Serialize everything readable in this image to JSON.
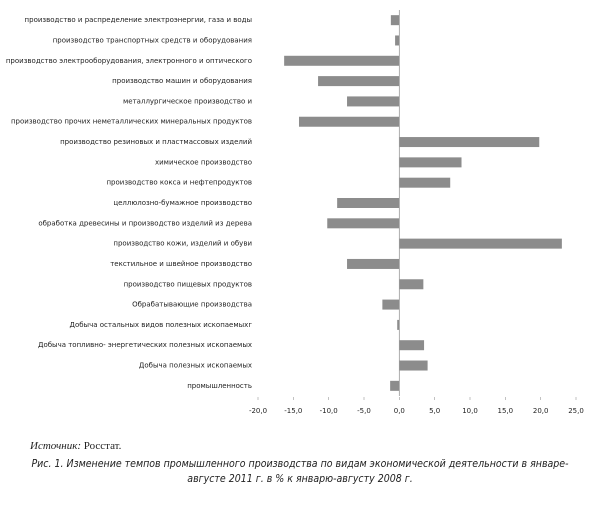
{
  "chart_data": {
    "type": "hbar",
    "categories": [
      "производство и распределение электроэнергии, газа и воды",
      "производство транспортных средств и оборудования",
      "производство электрооборудования, электронного и оптического",
      "производство машин и оборудования",
      "металлургическое производство и",
      "производство прочих неметаллических минеральных продуктов",
      "производство резиновых и пластмассовых изделий",
      "химическое производство",
      "производство кокса и нефтепродуктов",
      "целлюлозно-бумажное производство",
      "обработка древесины и производство изделий из дерева",
      "производство кожи, изделий и обуви",
      "текстильное и швейное производство",
      "производство пищевых продуктов",
      "Обрабатывающие производства",
      "Добыча  остальных видов полезных ископаемыхг",
      "Добыча топливно- энергетических  полезных ископаемых",
      "Добыча полезных ископаемых",
      "промышленность"
    ],
    "values": [
      -1.2,
      -0.6,
      -16.3,
      -11.5,
      -7.4,
      -14.2,
      19.8,
      8.8,
      7.2,
      -8.8,
      -10.2,
      23.0,
      -7.4,
      3.4,
      -2.4,
      -0.3,
      3.5,
      4.0,
      -1.3
    ],
    "color": "#8c8c8c",
    "xlim": [
      -20,
      25
    ],
    "xticks": [
      {
        "value": -20,
        "label": "-20,0"
      },
      {
        "value": -15,
        "label": "-15,0"
      },
      {
        "value": -10,
        "label": "-10,0"
      },
      {
        "value": -5,
        "label": "-5,0"
      },
      {
        "value": 0,
        "label": "0,0"
      },
      {
        "value": 5,
        "label": "5,0"
      },
      {
        "value": 10,
        "label": "10,0"
      },
      {
        "value": 15,
        "label": "15,0"
      },
      {
        "value": 20,
        "label": "20,0"
      },
      {
        "value": 25,
        "label": "25,0"
      }
    ],
    "grid": false
  },
  "source": {
    "label": "Источник:",
    "text": "Росстат."
  },
  "caption": "Рис. 1. Изменение темпов промышленного производства по видам экономической деятельности в январе-августе 2011 г. в % к январю-августу 2008 г."
}
